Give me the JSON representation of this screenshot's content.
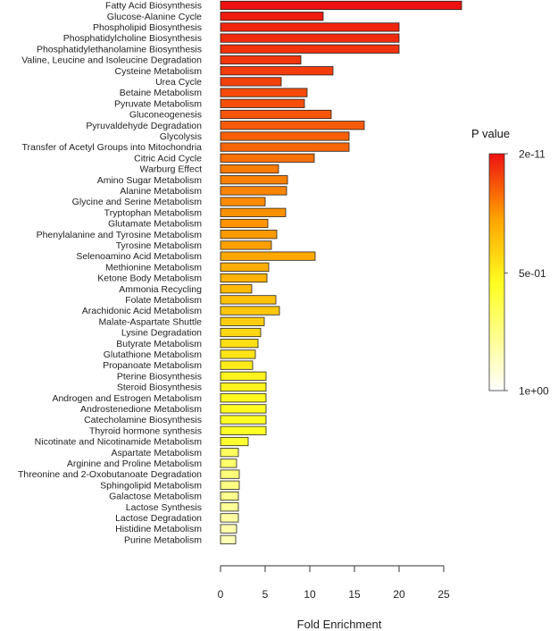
{
  "chart_data": {
    "type": "bar",
    "orientation": "horizontal",
    "xlabel": "Fold Enrichment",
    "xlim": [
      0,
      27
    ],
    "xticks": [
      0,
      5,
      10,
      15,
      20,
      25
    ],
    "legend": {
      "title": "P value",
      "ticks": [
        "2e-11",
        "5e-01",
        "1e+00"
      ],
      "placement": "right",
      "color_low": "#ffffff",
      "color_mid1": "#ffff22",
      "color_mid2": "#ffa500",
      "color_high": "#ee1111"
    },
    "categories": [
      "Fatty Acid Biosynthesis",
      "Glucose-Alanine Cycle",
      "Phospholipid Biosynthesis",
      "Phosphatidylcholine Biosynthesis",
      "Phosphatidylethanolamine Biosynthesis",
      "Valine, Leucine and Isoleucine Degradation",
      "Cysteine Metabolism",
      "Urea Cycle",
      "Betaine Metabolism",
      "Pyruvate Metabolism",
      "Gluconeogenesis",
      "Pyruvaldehyde Degradation",
      "Glycolysis",
      "Transfer of Acetyl Groups into Mitochondria",
      "Citric Acid Cycle",
      "Warburg Effect",
      "Amino Sugar Metabolism",
      "Alanine Metabolism",
      "Glycine and Serine Metabolism",
      "Tryptophan Metabolism",
      "Glutamate Metabolism",
      "Phenylalanine and Tyrosine Metabolism",
      "Tyrosine Metabolism",
      "Selenoamino Acid Metabolism",
      "Methionine Metabolism",
      "Ketone Body Metabolism",
      "Ammonia Recycling",
      "Folate Metabolism",
      "Arachidonic Acid Metabolism",
      "Malate-Aspartate Shuttle",
      "Lysine Degradation",
      "Butyrate Metabolism",
      "Glutathione Metabolism",
      "Propanoate Metabolism",
      "Pterine Biosynthesis",
      "Steroid Biosynthesis",
      "Androgen and Estrogen Metabolism",
      "Androstenedione Metabolism",
      "Catecholamine Biosynthesis",
      "Thyroid hormone synthesis",
      "Nicotinate and Nicotinamide Metabolism",
      "Aspartate Metabolism",
      "Arginine and Proline Metabolism",
      "Threonine and 2-Oxobutanoate Degradation",
      "Sphingolipid Metabolism",
      "Galactose Metabolism",
      "Lactose Synthesis",
      "Lactose Degradation",
      "Histidine Metabolism",
      "Purine Metabolism"
    ],
    "values": [
      27.0,
      11.5,
      20.0,
      20.0,
      20.0,
      9.0,
      12.6,
      6.8,
      9.7,
      9.4,
      12.4,
      16.1,
      14.4,
      14.4,
      10.5,
      6.5,
      7.5,
      7.4,
      5.0,
      7.3,
      5.3,
      6.3,
      5.7,
      10.6,
      5.4,
      5.2,
      3.5,
      6.2,
      6.6,
      4.9,
      4.5,
      4.2,
      3.9,
      3.6,
      5.1,
      5.1,
      5.1,
      5.1,
      5.1,
      5.1,
      3.1,
      2.0,
      1.8,
      2.1,
      2.1,
      2.0,
      2.0,
      2.0,
      1.8,
      1.7
    ],
    "color_level": [
      1.0,
      0.98,
      0.96,
      0.95,
      0.94,
      0.93,
      0.92,
      0.91,
      0.89,
      0.88,
      0.87,
      0.86,
      0.85,
      0.84,
      0.82,
      0.8,
      0.79,
      0.78,
      0.77,
      0.76,
      0.75,
      0.74,
      0.73,
      0.71,
      0.69,
      0.68,
      0.66,
      0.64,
      0.62,
      0.6,
      0.57,
      0.55,
      0.53,
      0.51,
      0.49,
      0.48,
      0.47,
      0.46,
      0.45,
      0.44,
      0.42,
      0.33,
      0.3,
      0.27,
      0.25,
      0.23,
      0.21,
      0.19,
      0.17,
      0.15
    ]
  }
}
